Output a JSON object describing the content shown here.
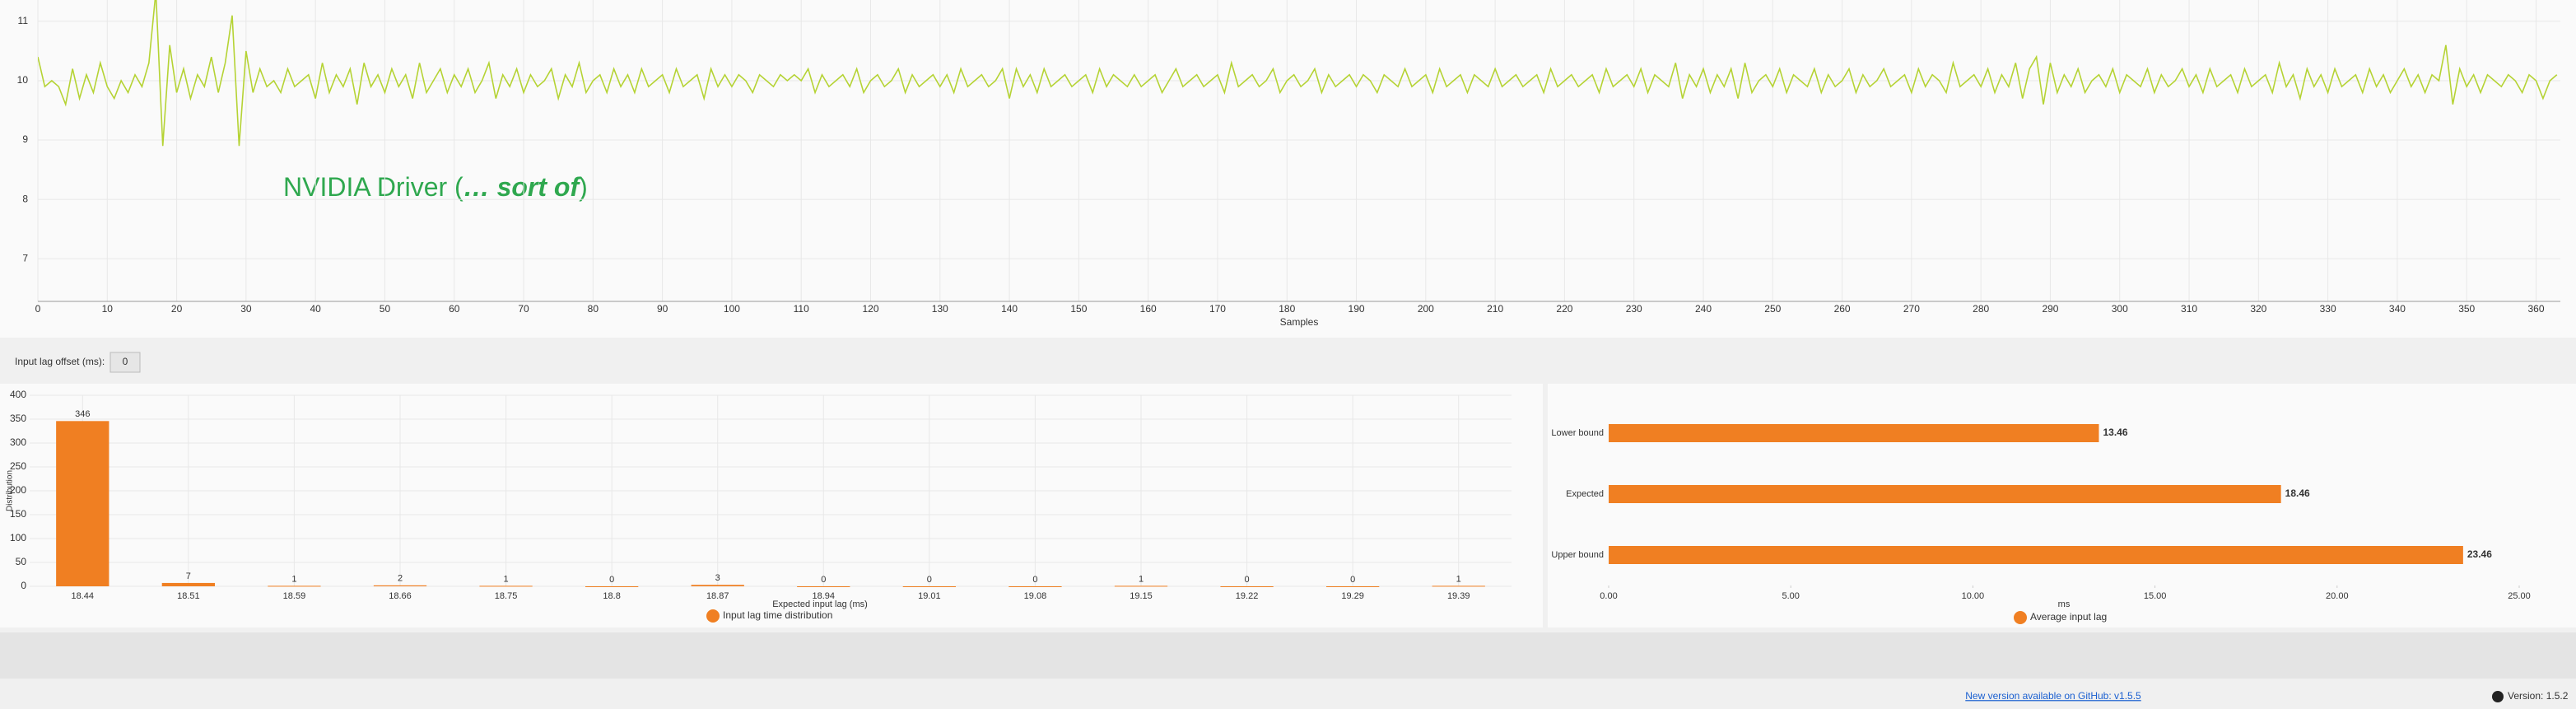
{
  "chart_data": [
    {
      "type": "line",
      "xlabel": "Samples",
      "color": "#b5d334",
      "grid": true,
      "annotation": [
        "NVIDIA Driver (",
        "… sort of",
        ")"
      ],
      "xlim": [
        0,
        363.5
      ],
      "ylim": [
        6.28,
        11.36
      ],
      "xticks": [
        0,
        10,
        20,
        30,
        40,
        50,
        60,
        70,
        80,
        90,
        100,
        110,
        120,
        130,
        140,
        150,
        160,
        170,
        180,
        190,
        200,
        210,
        220,
        230,
        240,
        250,
        260,
        270,
        280,
        290,
        300,
        310,
        320,
        330,
        340,
        350,
        360
      ],
      "yticks": [
        7,
        8,
        9,
        10,
        11
      ],
      "x": [
        0,
        1,
        2,
        3,
        4,
        5,
        6,
        7,
        8,
        9,
        10,
        11,
        12,
        13,
        14,
        15,
        16,
        17,
        18,
        19,
        20,
        21,
        22,
        23,
        24,
        25,
        26,
        27,
        28,
        29,
        30,
        31,
        32,
        33,
        34,
        35,
        36,
        37,
        38,
        39,
        40,
        41,
        42,
        43,
        44,
        45,
        46,
        47,
        48,
        49,
        50,
        51,
        52,
        53,
        54,
        55,
        56,
        57,
        58,
        59,
        60,
        61,
        62,
        63,
        64,
        65,
        66,
        67,
        68,
        69,
        70,
        71,
        72,
        73,
        74,
        75,
        76,
        77,
        78,
        79,
        80,
        81,
        82,
        83,
        84,
        85,
        86,
        87,
        88,
        89,
        90,
        91,
        92,
        93,
        94,
        95,
        96,
        97,
        98,
        99,
        100,
        101,
        102,
        103,
        104,
        105,
        106,
        107,
        108,
        109,
        110,
        111,
        112,
        113,
        114,
        115,
        116,
        117,
        118,
        119,
        120,
        121,
        122,
        123,
        124,
        125,
        126,
        127,
        128,
        129,
        130,
        131,
        132,
        133,
        134,
        135,
        136,
        137,
        138,
        139,
        140,
        141,
        142,
        143,
        144,
        145,
        146,
        147,
        148,
        149,
        150,
        151,
        152,
        153,
        154,
        155,
        156,
        157,
        158,
        159,
        160,
        161,
        162,
        163,
        164,
        165,
        166,
        167,
        168,
        169,
        170,
        171,
        172,
        173,
        174,
        175,
        176,
        177,
        178,
        179,
        180,
        181,
        182,
        183,
        184,
        185,
        186,
        187,
        188,
        189,
        190,
        191,
        192,
        193,
        194,
        195,
        196,
        197,
        198,
        199,
        200,
        201,
        202,
        203,
        204,
        205,
        206,
        207,
        208,
        209,
        210,
        211,
        212,
        213,
        214,
        215,
        216,
        217,
        218,
        219,
        220,
        221,
        222,
        223,
        224,
        225,
        226,
        227,
        228,
        229,
        230,
        231,
        232,
        233,
        234,
        235,
        236,
        237,
        238,
        239,
        240,
        241,
        242,
        243,
        244,
        245,
        246,
        247,
        248,
        249,
        250,
        251,
        252,
        253,
        254,
        255,
        256,
        257,
        258,
        259,
        260,
        261,
        262,
        263,
        264,
        265,
        266,
        267,
        268,
        269,
        270,
        271,
        272,
        273,
        274,
        275,
        276,
        277,
        278,
        279,
        280,
        281,
        282,
        283,
        284,
        285,
        286,
        287,
        288,
        289,
        290,
        291,
        292,
        293,
        294,
        295,
        296,
        297,
        298,
        299,
        300,
        301,
        302,
        303,
        304,
        305,
        306,
        307,
        308,
        309,
        310,
        311,
        312,
        313,
        314,
        315,
        316,
        317,
        318,
        319,
        320,
        321,
        322,
        323,
        324,
        325,
        326,
        327,
        328,
        329,
        330,
        331,
        332,
        333,
        334,
        335,
        336,
        337,
        338,
        339,
        340,
        341,
        342,
        343,
        344,
        345,
        346,
        347,
        348,
        349,
        350,
        351,
        352,
        353,
        354,
        355,
        356,
        357,
        358,
        359,
        360,
        361,
        362,
        363
      ],
      "values": [
        10.4,
        9.9,
        10.0,
        9.9,
        9.6,
        10.2,
        9.7,
        10.1,
        9.8,
        10.3,
        9.9,
        9.7,
        10.0,
        9.8,
        10.1,
        9.9,
        10.3,
        11.5,
        8.9,
        10.6,
        9.8,
        10.2,
        9.7,
        10.1,
        9.9,
        10.4,
        9.8,
        10.3,
        11.1,
        8.9,
        10.5,
        9.8,
        10.2,
        9.9,
        10.0,
        9.8,
        10.2,
        9.9,
        10.0,
        10.1,
        9.7,
        10.3,
        9.8,
        10.1,
        9.9,
        10.2,
        9.6,
        10.3,
        9.9,
        10.1,
        9.8,
        10.2,
        9.9,
        10.1,
        9.7,
        10.3,
        9.8,
        10.0,
        10.2,
        9.8,
        10.1,
        9.9,
        10.2,
        9.8,
        10.0,
        10.3,
        9.7,
        10.1,
        9.9,
        10.2,
        9.8,
        10.1,
        9.9,
        10.0,
        10.2,
        9.7,
        10.1,
        9.9,
        10.3,
        9.8,
        10.0,
        10.1,
        9.8,
        10.2,
        9.9,
        10.1,
        9.8,
        10.2,
        9.9,
        10.0,
        10.1,
        9.8,
        10.2,
        9.9,
        10.0,
        10.1,
        9.7,
        10.2,
        9.9,
        10.1,
        9.9,
        10.1,
        10.0,
        9.8,
        10.1,
        10.0,
        9.9,
        10.1,
        10.0,
        10.1,
        10.0,
        10.2,
        9.8,
        10.1,
        9.9,
        10.0,
        10.1,
        9.9,
        10.2,
        9.8,
        10.0,
        10.1,
        9.9,
        10.0,
        10.2,
        9.8,
        10.1,
        9.9,
        10.0,
        10.1,
        9.9,
        10.1,
        9.8,
        10.2,
        9.9,
        10.0,
        10.1,
        9.9,
        10.0,
        10.2,
        9.7,
        10.2,
        9.9,
        10.1,
        9.8,
        10.2,
        9.9,
        10.0,
        10.1,
        9.9,
        10.0,
        10.1,
        9.8,
        10.2,
        9.9,
        10.1,
        10.0,
        9.9,
        10.1,
        9.9,
        10.0,
        10.1,
        9.8,
        10.0,
        10.2,
        9.9,
        10.0,
        10.1,
        9.9,
        10.0,
        10.1,
        9.8,
        10.3,
        9.9,
        10.0,
        10.1,
        9.9,
        10.0,
        10.2,
        9.8,
        10.0,
        10.1,
        9.9,
        10.0,
        10.2,
        9.8,
        10.1,
        9.9,
        10.0,
        10.1,
        9.9,
        10.1,
        10.0,
        9.8,
        10.1,
        10.0,
        9.9,
        10.2,
        9.9,
        10.0,
        10.1,
        9.8,
        10.2,
        9.9,
        10.0,
        10.1,
        9.8,
        10.1,
        10.0,
        9.9,
        10.2,
        9.9,
        10.0,
        10.1,
        9.9,
        10.0,
        10.1,
        9.8,
        10.2,
        9.9,
        10.0,
        10.1,
        9.9,
        10.0,
        10.1,
        9.8,
        10.2,
        9.9,
        10.0,
        10.1,
        9.9,
        10.2,
        9.8,
        10.1,
        10.0,
        9.9,
        10.3,
        9.7,
        10.1,
        9.9,
        10.2,
        9.8,
        10.1,
        9.9,
        10.2,
        9.7,
        10.3,
        9.8,
        10.0,
        10.1,
        9.9,
        10.2,
        9.8,
        10.1,
        10.0,
        9.9,
        10.2,
        9.8,
        10.1,
        9.9,
        10.0,
        10.2,
        9.8,
        10.1,
        9.9,
        10.0,
        10.2,
        9.9,
        10.0,
        10.1,
        9.8,
        10.2,
        9.9,
        10.1,
        10.0,
        9.8,
        10.3,
        9.9,
        10.0,
        10.1,
        9.9,
        10.2,
        9.8,
        10.1,
        9.9,
        10.3,
        9.7,
        10.2,
        10.4,
        9.6,
        10.3,
        9.8,
        10.1,
        9.9,
        10.2,
        9.8,
        10.0,
        10.1,
        9.9,
        10.2,
        9.8,
        10.1,
        10.0,
        9.9,
        10.2,
        9.8,
        10.1,
        9.9,
        10.0,
        10.2,
        9.9,
        10.1,
        9.8,
        10.2,
        9.9,
        10.0,
        10.1,
        9.8,
        10.2,
        9.9,
        10.0,
        10.1,
        9.8,
        10.3,
        9.9,
        10.1,
        9.7,
        10.2,
        9.9,
        10.1,
        9.8,
        10.2,
        9.9,
        10.0,
        10.1,
        9.8,
        10.2,
        9.9,
        10.1,
        9.8,
        10.0,
        10.2,
        9.9,
        10.1,
        9.8,
        10.1,
        10.0,
        10.6,
        9.6,
        10.2,
        9.9,
        10.1,
        9.8,
        10.1,
        10.0,
        9.9,
        10.1,
        10.0,
        9.8,
        10.1,
        10.0,
        9.7,
        10.0,
        10.1
      ]
    },
    {
      "type": "bar",
      "ylabel": "Distribution",
      "xlabel": "Expected input lag (ms)",
      "legend": "Input lag time distribution",
      "color": "#f07f22",
      "grid": true,
      "categories": [
        "18.44",
        "18.51",
        "18.59",
        "18.66",
        "18.75",
        "18.8",
        "18.87",
        "18.94",
        "19.01",
        "19.08",
        "19.15",
        "19.22",
        "19.29",
        "19.39"
      ],
      "values": [
        346,
        7,
        1,
        2,
        1,
        0,
        3,
        0,
        0,
        0,
        1,
        0,
        0,
        1
      ],
      "ylim": [
        0,
        400
      ],
      "yticks": [
        0,
        50,
        100,
        150,
        200,
        250,
        300,
        350,
        400
      ]
    },
    {
      "type": "hbar",
      "xlabel": "ms",
      "legend": "Average input lag",
      "color": "#f07f22",
      "grid": false,
      "categories": [
        "Lower bound",
        "Expected",
        "Upper bound"
      ],
      "values": [
        13.46,
        18.46,
        23.46
      ],
      "xlim": [
        0,
        25
      ],
      "xticks": [
        {
          "value": 0,
          "label": "0.00"
        },
        {
          "value": 5,
          "label": "5.00"
        },
        {
          "value": 10,
          "label": "10.00"
        },
        {
          "value": 15,
          "label": "15.00"
        },
        {
          "value": 20,
          "label": "20.00"
        },
        {
          "value": 25,
          "label": "25.00"
        }
      ]
    }
  ],
  "controls": {
    "offset_label": "Input lag offset (ms):",
    "offset_value": "0"
  },
  "footer": {
    "update_link": "New version available on GitHub: v1.5.5",
    "version": "Version: 1.5.2"
  }
}
